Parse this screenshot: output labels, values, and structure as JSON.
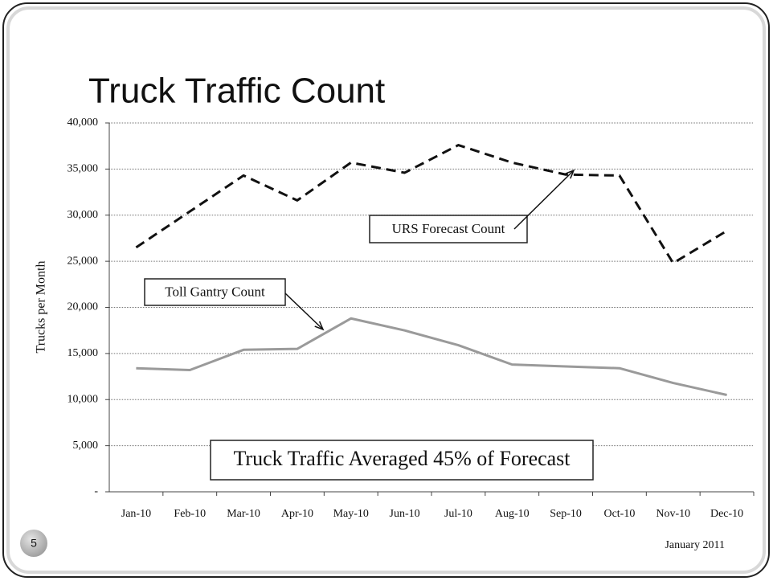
{
  "chart_data": {
    "type": "line",
    "title": "Truck Traffic Count",
    "y_label": "Trucks per Month",
    "categories": [
      "Jan-10",
      "Feb-10",
      "Mar-10",
      "Apr-10",
      "May-10",
      "Jun-10",
      "Jul-10",
      "Aug-10",
      "Sep-10",
      "Oct-10",
      "Nov-10",
      "Dec-10"
    ],
    "series": [
      {
        "name": "URS Forecast Count",
        "color": "#111111",
        "dashed": true,
        "values": [
          26500,
          30400,
          34300,
          31600,
          35700,
          34600,
          37600,
          35700,
          34400,
          34300,
          24800,
          28300
        ]
      },
      {
        "name": "Toll Gantry Count",
        "color": "#9a9a9a",
        "dashed": false,
        "values": [
          13400,
          13200,
          15400,
          15500,
          18800,
          17500,
          15900,
          13800,
          13600,
          13400,
          11800,
          10500
        ]
      }
    ],
    "ylim": [
      0,
      40000
    ],
    "yticks": [
      {
        "value": 0,
        "label": "-"
      },
      {
        "value": 5000,
        "label": "5,000"
      },
      {
        "value": 10000,
        "label": "10,000"
      },
      {
        "value": 15000,
        "label": "15,000"
      },
      {
        "value": 20000,
        "label": "20,000"
      },
      {
        "value": 25000,
        "label": "25,000"
      },
      {
        "value": 30000,
        "label": "30,000"
      },
      {
        "value": 35000,
        "label": "35,000"
      },
      {
        "value": 40000,
        "label": "40,000"
      }
    ],
    "grid": true,
    "annotations": [
      "Truck Traffic Averaged 45% of Forecast"
    ]
  },
  "footer": {
    "date": "January 2011",
    "slide_number": "5"
  }
}
